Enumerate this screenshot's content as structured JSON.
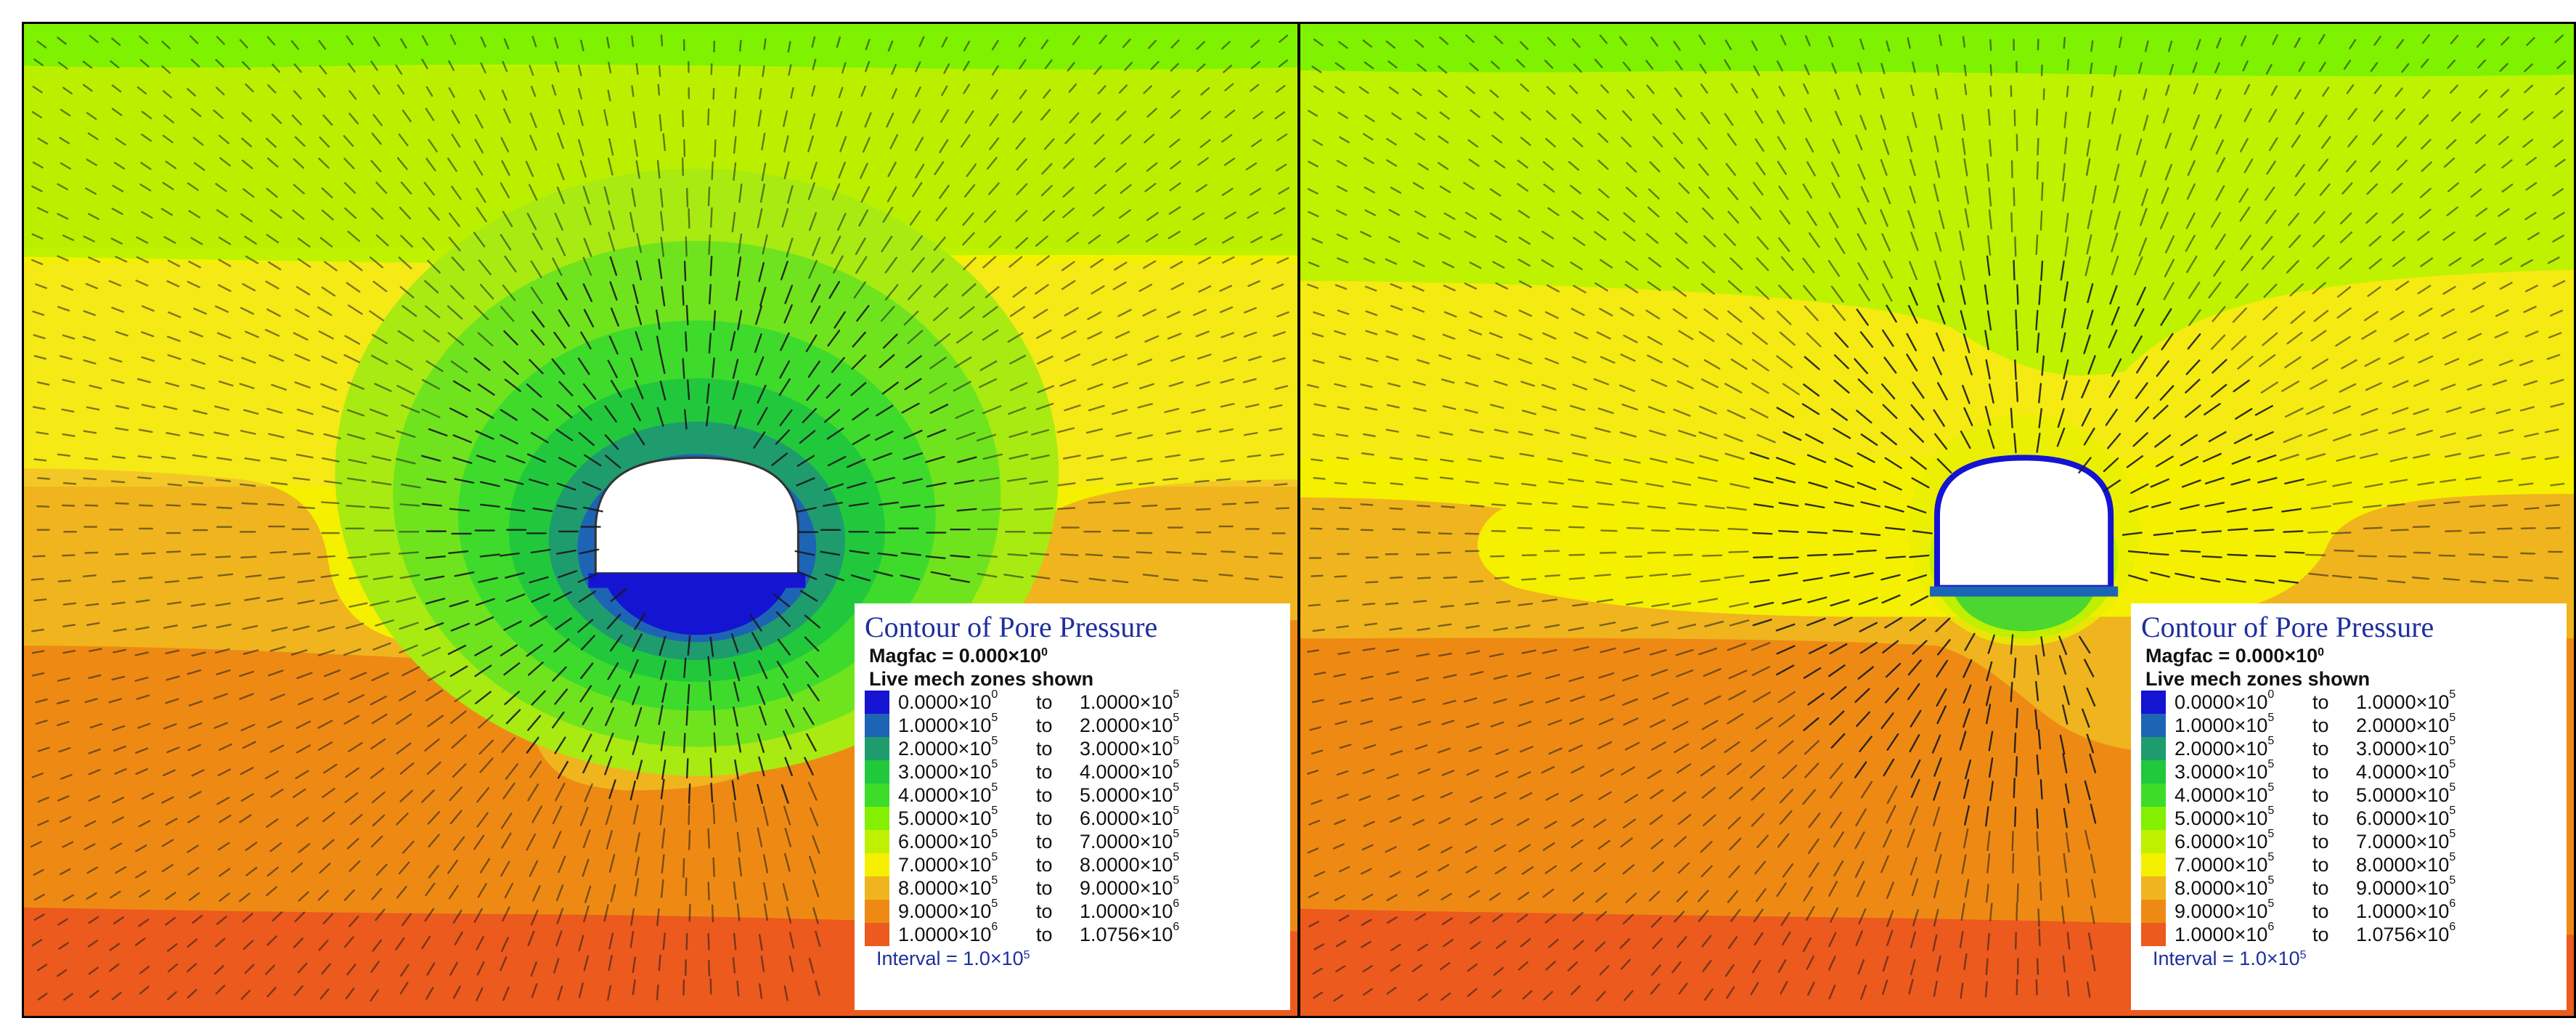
{
  "panels": [
    {
      "name": "left",
      "legend": {
        "title": "Contour of Pore Pressure",
        "magfac": "Magfac =  0.000×10",
        "magfac_exp": "0",
        "zones": "Live mech zones shown",
        "interval": "Interval =  1.0×10",
        "interval_exp": "5"
      }
    },
    {
      "name": "right",
      "legend": {
        "title": "Contour of Pore Pressure",
        "magfac": "Magfac =  0.000×10",
        "magfac_exp": "0",
        "zones": "Live mech zones shown",
        "interval": "Interval =  1.0×10",
        "interval_exp": "5"
      }
    }
  ],
  "legend_rows": [
    {
      "from": "0.0000×10",
      "from_exp": "0",
      "to": "1.0000×10",
      "to_exp": "5",
      "color": "#1414d2"
    },
    {
      "from": "1.0000×10",
      "from_exp": "5",
      "to": "2.0000×10",
      "to_exp": "5",
      "color": "#1e64b4"
    },
    {
      "from": "2.0000×10",
      "from_exp": "5",
      "to": "3.0000×10",
      "to_exp": "5",
      "color": "#1e9c6e"
    },
    {
      "from": "3.0000×10",
      "from_exp": "5",
      "to": "4.0000×10",
      "to_exp": "5",
      "color": "#20c83c"
    },
    {
      "from": "4.0000×10",
      "from_exp": "5",
      "to": "5.0000×10",
      "to_exp": "5",
      "color": "#3cdc28"
    },
    {
      "from": "5.0000×10",
      "from_exp": "5",
      "to": "6.0000×10",
      "to_exp": "5",
      "color": "#82f000"
    },
    {
      "from": "6.0000×10",
      "from_exp": "5",
      "to": "7.0000×10",
      "to_exp": "5",
      "color": "#bef000"
    },
    {
      "from": "7.0000×10",
      "from_exp": "5",
      "to": "8.0000×10",
      "to_exp": "5",
      "color": "#f5f000"
    },
    {
      "from": "8.0000×10",
      "from_exp": "5",
      "to": "9.0000×10",
      "to_exp": "5",
      "color": "#f0b41e"
    },
    {
      "from": "9.0000×10",
      "from_exp": "5",
      "to": "1.0000×10",
      "to_exp": "6",
      "color": "#ee8a14"
    },
    {
      "from": "1.0000×10",
      "from_exp": "6",
      "to": "1.0756×10",
      "to_exp": "6",
      "color": "#ec5a1e"
    }
  ],
  "colors": {
    "green_band": "#7ef200",
    "light_green": "#bef200",
    "yellow": "#f7d600",
    "yellow_bright": "#f5f000",
    "orange_light": "#f0b41e",
    "orange": "#ee8a14",
    "red_orange": "#ec5a1e",
    "tunnel": "#ffffff",
    "arrow": "#1a1a1a",
    "legend_text": "#1e2f9e"
  },
  "to_word": "to"
}
